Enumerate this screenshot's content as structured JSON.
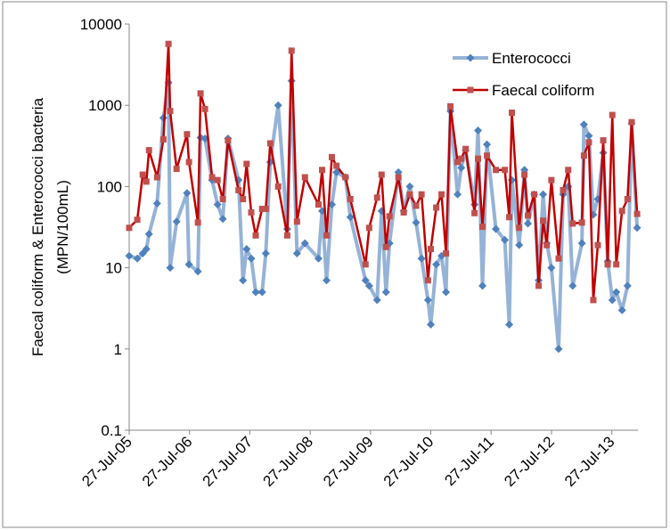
{
  "chart_data": {
    "type": "line",
    "ylabel": [
      "Faecal coliform & Enterococci bacteria",
      "(MPN/100mL)"
    ],
    "log_y": true,
    "legend": "upper right",
    "x": [
      "2005-07-27",
      "2005-09-14",
      "2005-10-17",
      "2005-11-08",
      "2005-11-24",
      "2006-01-12",
      "2006-02-19",
      "2006-03-22",
      "2006-04-01",
      "2006-05-10",
      "2006-07-12",
      "2006-07-24",
      "2006-09-16",
      "2006-10-02",
      "2006-10-29",
      "2006-12-11",
      "2007-01-13",
      "2007-02-14",
      "2007-03-17",
      "2007-05-20",
      "2007-06-16",
      "2007-07-08",
      "2007-08-05",
      "2007-09-01",
      "2007-10-10",
      "2007-11-01",
      "2007-11-28",
      "2008-01-15",
      "2008-03-10",
      "2008-04-05",
      "2008-05-08",
      "2008-06-25",
      "2008-09-15",
      "2008-10-07",
      "2008-11-03",
      "2008-12-05",
      "2009-01-02",
      "2009-02-25",
      "2009-03-27",
      "2009-06-27",
      "2009-07-19",
      "2009-09-05",
      "2009-10-02",
      "2009-10-29",
      "2009-11-19",
      "2010-01-12",
      "2010-02-13",
      "2010-03-22",
      "2010-04-29",
      "2010-06-01",
      "2010-07-10",
      "2010-07-27",
      "2010-08-29",
      "2010-09-30",
      "2010-10-27",
      "2010-11-23",
      "2011-01-05",
      "2011-01-27",
      "2011-02-23",
      "2011-04-18",
      "2011-05-09",
      "2011-06-05",
      "2011-07-02",
      "2011-08-25",
      "2011-10-18",
      "2011-11-14",
      "2011-11-30",
      "2012-01-13",
      "2012-02-14",
      "2012-03-06",
      "2012-04-13",
      "2012-05-10",
      "2012-06-06",
      "2012-06-28",
      "2012-07-26",
      "2012-09-08",
      "2012-10-05",
      "2012-11-05",
      "2012-12-02",
      "2013-01-27",
      "2013-02-08",
      "2013-03-10",
      "2013-04-06",
      "2013-05-03",
      "2013-06-05",
      "2013-07-02",
      "2013-07-30",
      "2013-08-23",
      "2013-09-27",
      "2013-10-30",
      "2013-11-24",
      "2013-12-27"
    ],
    "series": [
      {
        "name": "Enterococci",
        "color": "#95b3d7",
        "marker_color": "#4f81bd",
        "marker": "diamond",
        "values": [
          14,
          13,
          15,
          17,
          26,
          62,
          700,
          1900,
          10,
          37,
          83,
          11,
          9,
          400,
          390,
          120,
          60,
          40,
          390,
          120,
          7,
          17,
          13,
          5,
          5,
          15,
          200,
          1000,
          30,
          2000,
          15,
          20,
          13,
          50,
          7,
          60,
          150,
          130,
          42,
          7,
          6,
          4,
          50,
          5,
          20,
          150,
          50,
          100,
          36,
          13,
          4,
          2,
          11,
          14,
          5,
          850,
          80,
          170,
          280,
          60,
          490,
          6,
          330,
          30,
          22,
          2,
          120,
          19,
          160,
          35,
          80,
          7,
          80,
          20,
          10,
          1,
          80,
          100,
          6,
          20,
          580,
          420,
          45,
          70,
          260,
          12,
          4,
          5,
          3,
          6,
          600,
          31
        ]
      },
      {
        "name": "Faecal coliform",
        "color": "#c00000",
        "marker_color": "#c0504d",
        "marker": "square",
        "values": [
          31,
          39,
          140,
          115,
          280,
          130,
          380,
          5700,
          850,
          165,
          440,
          200,
          36,
          1400,
          900,
          130,
          120,
          70,
          370,
          90,
          70,
          190,
          48,
          25,
          53,
          53,
          340,
          100,
          25,
          4700,
          37,
          130,
          60,
          160,
          25,
          230,
          180,
          130,
          70,
          11,
          31,
          73,
          140,
          18,
          43,
          130,
          48,
          80,
          58,
          80,
          7,
          17,
          55,
          80,
          15,
          970,
          200,
          220,
          290,
          47,
          220,
          32,
          240,
          160,
          160,
          42,
          810,
          31,
          140,
          44,
          80,
          6,
          38,
          19,
          120,
          13,
          90,
          160,
          35,
          36,
          240,
          350,
          4,
          19,
          370,
          11,
          760,
          11,
          50,
          70,
          620,
          46
        ]
      }
    ],
    "xlim": [
      "2005-07-27",
      "2014-01-01"
    ],
    "xticks": [
      {
        "value": "2005-07-27",
        "label": "27-Jul-05"
      },
      {
        "value": "2006-07-27",
        "label": "27-Jul-06"
      },
      {
        "value": "2007-07-27",
        "label": "27-Jul-07"
      },
      {
        "value": "2008-07-27",
        "label": "27-Jul-08"
      },
      {
        "value": "2009-07-27",
        "label": "27-Jul-09"
      },
      {
        "value": "2010-07-27",
        "label": "27-Jul-10"
      },
      {
        "value": "2011-07-27",
        "label": "27-Jul-11"
      },
      {
        "value": "2012-07-27",
        "label": "27-Jul-12"
      },
      {
        "value": "2013-07-27",
        "label": "27-Jul-13"
      }
    ],
    "ylim": [
      0.1,
      10000
    ],
    "yticks": [
      0.1,
      1,
      10,
      100,
      1000,
      10000
    ]
  }
}
